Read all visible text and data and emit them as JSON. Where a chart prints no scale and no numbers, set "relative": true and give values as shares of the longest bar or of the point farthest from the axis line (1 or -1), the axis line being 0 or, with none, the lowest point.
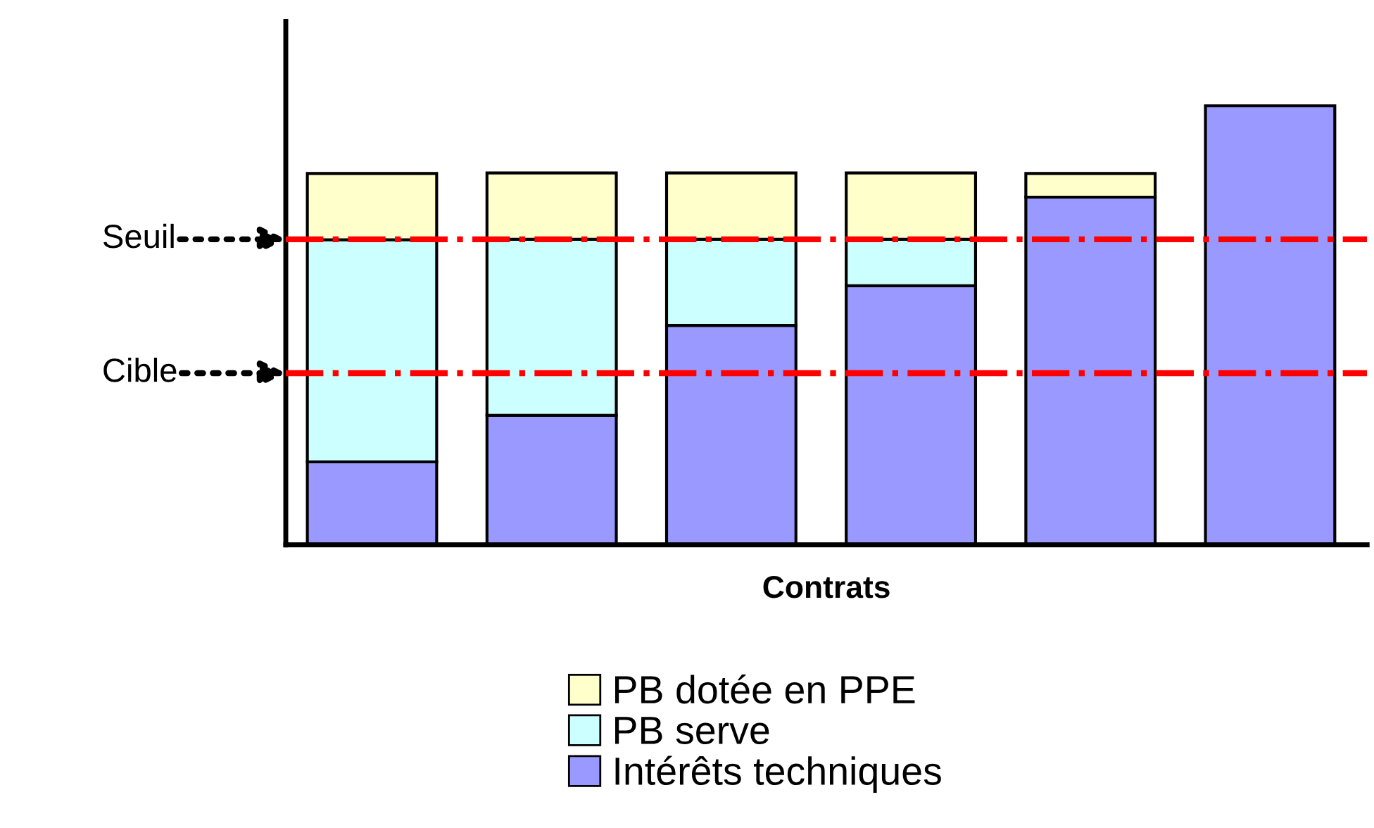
{
  "chart_data": {
    "type": "bar",
    "stacked": true,
    "relative": true,
    "xlabel": "Contrats",
    "categories": [
      null,
      null,
      null,
      null,
      null,
      null
    ],
    "series": [
      {
        "name": "Intérêts techniques",
        "color": "#9999ff",
        "values": [
          0.189,
          0.295,
          0.5,
          0.59,
          0.792,
          1
        ]
      },
      {
        "name": "PB serve",
        "color": "#ccffff",
        "values": [
          0.506,
          0.401,
          0.196,
          0.106,
          0,
          0
        ]
      },
      {
        "name": "PB dotée en PPE",
        "color": "#ffffcc",
        "values": [
          0.151,
          0.151,
          0.151,
          0.151,
          0.054,
          0
        ]
      }
    ],
    "ref_lines": [
      {
        "axis": "y",
        "value": 0.696,
        "label": "Seuil",
        "color": "#ff0000",
        "line_style": "dashdot"
      },
      {
        "axis": "y",
        "value": 0.391,
        "label": "Cible",
        "color": "#ff0000",
        "line_style": "dashdot"
      }
    ],
    "legend": "bottom",
    "grid": false
  }
}
